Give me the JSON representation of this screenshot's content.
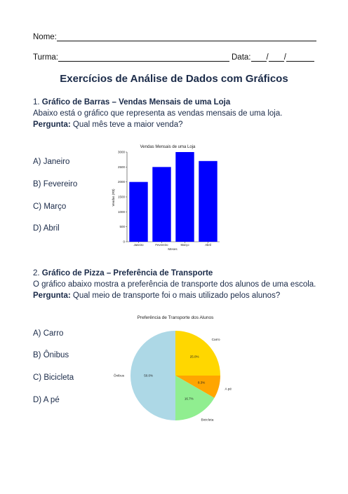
{
  "header": {
    "name_label": "Nome:",
    "class_label": "Turma:",
    "date_label": "Data:",
    "date_sep": "/"
  },
  "title": "Exercícios de Análise de Dados com Gráficos",
  "q1": {
    "number": "1.",
    "heading": "Gráfico de Barras – Vendas Mensais de uma Loja",
    "desc": "Abaixo está o gráfico que representa as vendas mensais de uma loja.",
    "question_label": "Pergunta:",
    "question": "Qual mês teve a maior venda?",
    "options": [
      "A) Janeiro",
      "B) Fevereiro",
      "C) Março",
      "D) Abril"
    ]
  },
  "q2": {
    "number": "2.",
    "heading": "Gráfico de Pizza – Preferência de Transporte",
    "desc": "O gráfico abaixo mostra a preferência de transporte dos alunos de uma escola.",
    "question_label": "Pergunta:",
    "question": "Qual meio de transporte foi o mais utilizado pelos alunos?",
    "options": [
      "A) Carro",
      "B) Ônibus",
      "C) Bicicleta",
      "D) A pé"
    ]
  },
  "chart_data": [
    {
      "type": "bar",
      "title": "Vendas Mensais de uma Loja",
      "xlabel": "Meses",
      "ylabel": "Vendas (R$)",
      "categories": [
        "Janeiro",
        "Fevereiro",
        "Março",
        "Abril"
      ],
      "values": [
        2000,
        2500,
        3000,
        2700
      ],
      "ylim": [
        0,
        3000
      ],
      "yticks": [
        0,
        500,
        1000,
        1500,
        2000,
        2500,
        3000
      ],
      "color": "#0000ff",
      "grid": false
    },
    {
      "type": "pie",
      "title": "Preferência de Transporte dos Alunos",
      "slices": [
        {
          "label": "Carro",
          "value": 25.0,
          "pct": "25.0%",
          "color": "#ffd700"
        },
        {
          "label": "A pé",
          "value": 8.3,
          "pct": "8.3%",
          "color": "#ffa500"
        },
        {
          "label": "Bicicleta",
          "value": 16.7,
          "pct": "16.7%",
          "color": "#90ee90"
        },
        {
          "label": "Ônibus",
          "value": 50.0,
          "pct": "50.0%",
          "color": "#add8e6"
        }
      ]
    }
  ]
}
